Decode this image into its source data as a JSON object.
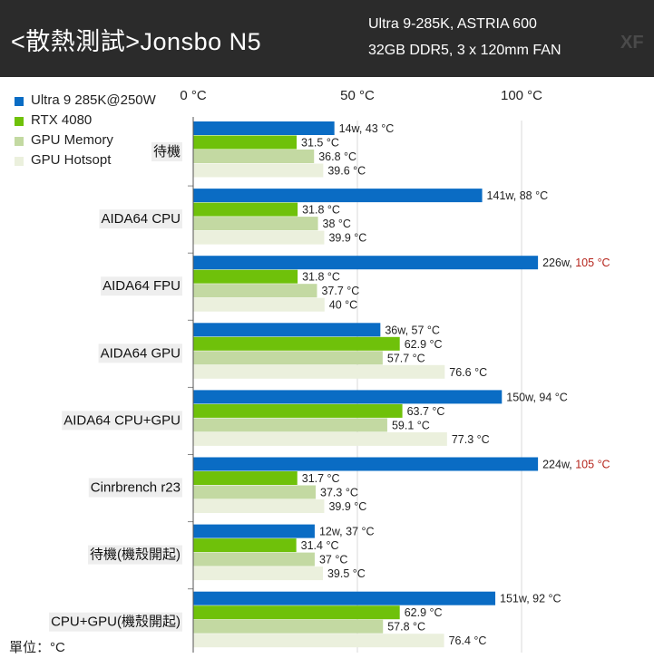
{
  "header": {
    "title": "<散熱測試>Jonsbo N5",
    "subtitle_line1": "Ultra 9-285K, ASTRIA 600",
    "subtitle_line2": "32GB DDR5, 3 x 120mm FAN",
    "logo": "XF"
  },
  "unit_note": "單位：°C",
  "colors": {
    "cpu": "#0a6cc4",
    "gpu": "#6fc10a",
    "gpu_memory": "#c3d9a2",
    "gpu_hotspot": "#ebf0dd",
    "highlight": "#b5241b",
    "header_bg": "#2b2b2b"
  },
  "chart_data": {
    "type": "bar",
    "orientation": "horizontal",
    "xlim": [
      0,
      100
    ],
    "x_ticks": [
      "0 °C",
      "50 °C",
      "100 °C"
    ],
    "grid": true,
    "legend_position": "top-left",
    "categories": [
      "待機",
      "AIDA64 CPU",
      "AIDA64 FPU",
      "AIDA64 GPU",
      "AIDA64 CPU+GPU",
      "Cinrbrench r23",
      "待機(機殼開起)",
      "CPU+GPU(機殼開起)"
    ],
    "series": [
      {
        "name": "Ultra 9 285K@250W",
        "color": "#0a6cc4",
        "values": [
          43,
          88,
          105,
          57,
          94,
          105,
          37,
          92
        ],
        "labels": [
          [
            "14w, ",
            "43 °C"
          ],
          [
            "141w, ",
            "88 °C"
          ],
          [
            "226w, ",
            "105 °C"
          ],
          [
            "36w, ",
            "57 °C"
          ],
          [
            "150w, ",
            "94 °C"
          ],
          [
            "224w, ",
            "105 °C"
          ],
          [
            "12w, ",
            "37 °C"
          ],
          [
            "151w, ",
            "92 °C"
          ]
        ],
        "highlight": [
          false,
          false,
          true,
          false,
          false,
          true,
          false,
          false
        ]
      },
      {
        "name": "RTX 4080",
        "color": "#6fc10a",
        "values": [
          31.5,
          31.8,
          31.8,
          62.9,
          63.7,
          31.7,
          31.4,
          62.9
        ],
        "labels": [
          "31.5 °C",
          "31.8 °C",
          "31.8 °C",
          "62.9 °C",
          "63.7 °C",
          "31.7 °C",
          "31.4 °C",
          "62.9 °C"
        ]
      },
      {
        "name": "GPU Memory",
        "color": "#c3d9a2",
        "values": [
          36.8,
          38,
          37.7,
          57.7,
          59.1,
          37.3,
          37,
          57.8
        ],
        "labels": [
          "36.8 °C",
          "38 °C",
          "37.7 °C",
          "57.7 °C",
          "59.1 °C",
          "37.3 °C",
          "37 °C",
          "57.8 °C"
        ]
      },
      {
        "name": "GPU Hotsopt",
        "color": "#ebf0dd",
        "values": [
          39.6,
          39.9,
          40,
          76.6,
          77.3,
          39.9,
          39.5,
          76.4
        ],
        "labels": [
          "39.6 °C",
          "39.9 °C",
          "40 °C",
          "76.6 °C",
          "77.3 °C",
          "39.9 °C",
          "39.5 °C",
          "76.4 °C"
        ]
      }
    ]
  }
}
